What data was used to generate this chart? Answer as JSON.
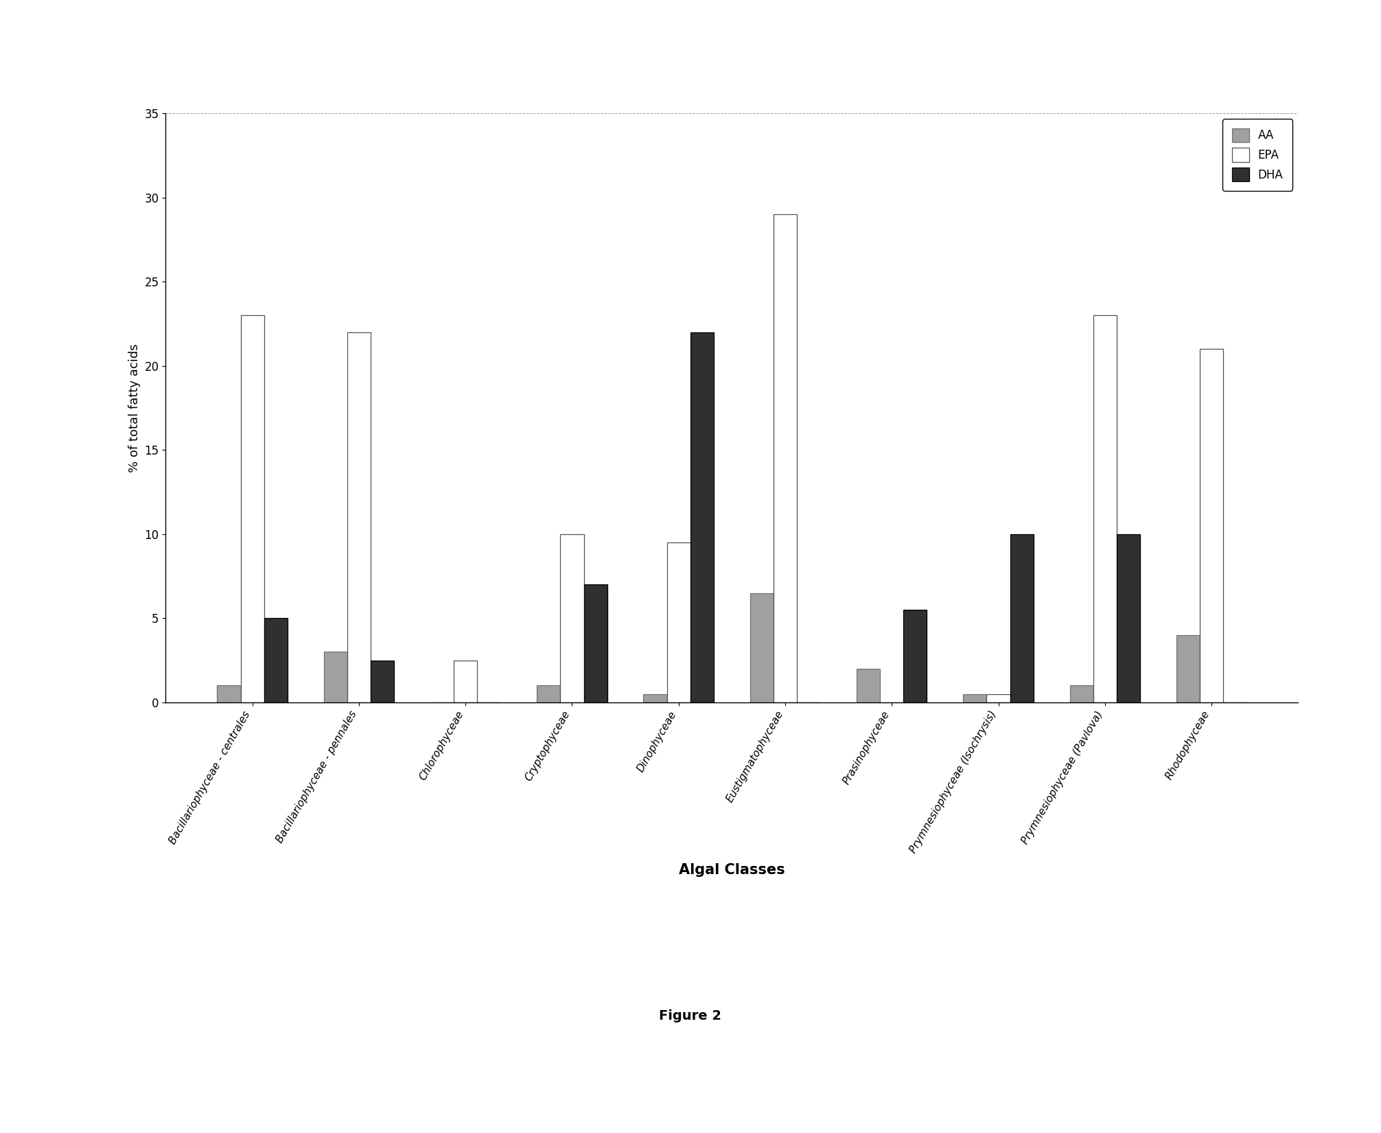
{
  "categories": [
    "Bacillariophyceae - centrales",
    "Bacillariophyceae - pennales",
    "Chlorophyceae",
    "Cryptophyceae",
    "Dinophyceae",
    "Eustigmatophyceae",
    "Prasinophyceae",
    "Prymnesiophyceae (Isochrysis)",
    "Prymnesiophyceae (Pavlova)",
    "Rhodophyceae"
  ],
  "AA": [
    1.0,
    3.0,
    0.0,
    1.0,
    0.5,
    6.5,
    2.0,
    0.5,
    1.0,
    4.0
  ],
  "EPA": [
    23.0,
    22.0,
    2.5,
    10.0,
    9.5,
    29.0,
    0.0,
    0.5,
    23.0,
    21.0
  ],
  "DHA": [
    5.0,
    2.5,
    0.0,
    7.0,
    22.0,
    0.0,
    5.5,
    10.0,
    10.0,
    0.0
  ],
  "AA_color": "#a0a0a0",
  "EPA_color": "#ffffff",
  "DHA_color": "#303030",
  "AA_edge": "#707070",
  "EPA_edge": "#505050",
  "DHA_edge": "#000000",
  "ylabel": "% of total fatty acids",
  "xlabel": "Algal Classes",
  "ylim": [
    0,
    35
  ],
  "yticks": [
    0,
    5,
    10,
    15,
    20,
    25,
    30,
    35
  ],
  "legend_labels": [
    "AA",
    "EPA",
    "DHA"
  ],
  "figure_label": "Figure 2",
  "background_color": "#ffffff"
}
